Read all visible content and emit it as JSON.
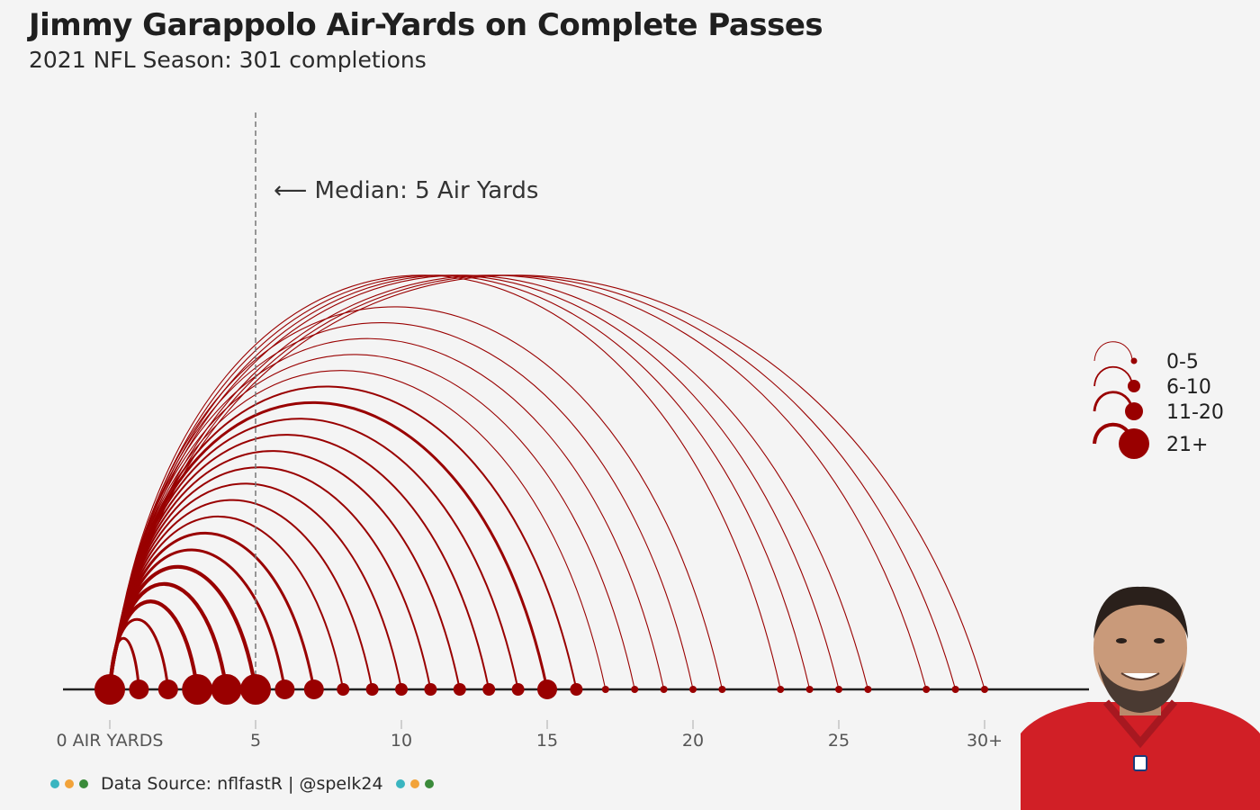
{
  "header": {
    "title": "Jimmy Garappolo Air-Yards on Complete Passes",
    "subtitle": "2021 NFL Season: 301 completions"
  },
  "annotation": {
    "median_text": "⟵ Median: 5 Air Yards",
    "median_value": 5
  },
  "footer": {
    "source": "Data Source: nflfastR | @spelk24"
  },
  "colors": {
    "arc": "#990000",
    "baseline": "#222222",
    "dot_teal": "#3ab5c0",
    "dot_orange": "#f2a33a",
    "dot_green": "#3a8a3a"
  },
  "legend": {
    "items": [
      {
        "label": "0-5",
        "level": 1
      },
      {
        "label": "6-10",
        "level": 2
      },
      {
        "label": "11-20",
        "level": 3
      },
      {
        "label": "21+",
        "level": 4
      }
    ]
  },
  "chart_data": {
    "type": "arc",
    "title": "Jimmy Garappolo Air-Yards on Complete Passes",
    "subtitle": "2021 NFL Season: 301 completions",
    "x_ticks": [
      0,
      5,
      10,
      15,
      20,
      25,
      30
    ],
    "x_tick_labels": [
      "0 AIR YARDS",
      "5",
      "10",
      "15",
      "20",
      "25",
      "30+"
    ],
    "xlim": [
      0,
      30
    ],
    "median": 5,
    "size_legend": [
      "0-5",
      "6-10",
      "11-20",
      "21+"
    ],
    "points": [
      {
        "air_yards": 0,
        "count_bin": "21+"
      },
      {
        "air_yards": 1,
        "count_bin": "11-20"
      },
      {
        "air_yards": 2,
        "count_bin": "11-20"
      },
      {
        "air_yards": 3,
        "count_bin": "21+"
      },
      {
        "air_yards": 4,
        "count_bin": "21+"
      },
      {
        "air_yards": 5,
        "count_bin": "21+"
      },
      {
        "air_yards": 6,
        "count_bin": "11-20"
      },
      {
        "air_yards": 7,
        "count_bin": "11-20"
      },
      {
        "air_yards": 8,
        "count_bin": "6-10"
      },
      {
        "air_yards": 9,
        "count_bin": "6-10"
      },
      {
        "air_yards": 10,
        "count_bin": "6-10"
      },
      {
        "air_yards": 11,
        "count_bin": "6-10"
      },
      {
        "air_yards": 12,
        "count_bin": "6-10"
      },
      {
        "air_yards": 13,
        "count_bin": "6-10"
      },
      {
        "air_yards": 14,
        "count_bin": "6-10"
      },
      {
        "air_yards": 15,
        "count_bin": "11-20"
      },
      {
        "air_yards": 16,
        "count_bin": "6-10"
      },
      {
        "air_yards": 17,
        "count_bin": "0-5"
      },
      {
        "air_yards": 18,
        "count_bin": "0-5"
      },
      {
        "air_yards": 19,
        "count_bin": "0-5"
      },
      {
        "air_yards": 20,
        "count_bin": "0-5"
      },
      {
        "air_yards": 21,
        "count_bin": "0-5"
      },
      {
        "air_yards": 23,
        "count_bin": "0-5"
      },
      {
        "air_yards": 24,
        "count_bin": "0-5"
      },
      {
        "air_yards": 25,
        "count_bin": "0-5"
      },
      {
        "air_yards": 26,
        "count_bin": "0-5"
      },
      {
        "air_yards": 28,
        "count_bin": "0-5"
      },
      {
        "air_yards": 29,
        "count_bin": "0-5"
      },
      {
        "air_yards": 30,
        "count_bin": "0-5"
      }
    ]
  }
}
